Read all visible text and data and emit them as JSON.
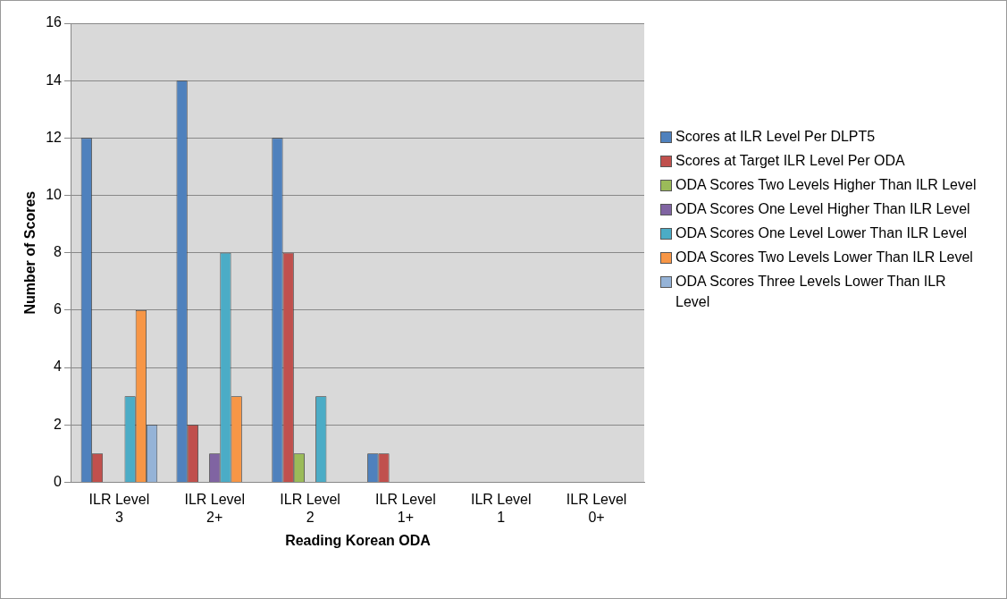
{
  "chart_data": {
    "type": "bar",
    "xlabel": "Reading Korean ODA",
    "ylabel": "Number of Scores",
    "categories": [
      "ILR Level 3",
      "ILR Level 2+",
      "ILR Level 2",
      "ILR Level 1+",
      "ILR Level 1",
      "ILR Level 0+"
    ],
    "series": [
      {
        "name": "Scores at ILR Level Per DLPT5",
        "color": "#4f81bd",
        "values": [
          12,
          14,
          12,
          1,
          0,
          0
        ]
      },
      {
        "name": "Scores at Target ILR Level Per ODA",
        "color": "#c0504d",
        "values": [
          1,
          2,
          8,
          1,
          0,
          0
        ]
      },
      {
        "name": "ODA Scores Two Levels Higher Than ILR Level",
        "color": "#9bbb59",
        "values": [
          0,
          0,
          1,
          0,
          0,
          0
        ]
      },
      {
        "name": "ODA Scores One Level Higher Than ILR Level",
        "color": "#8064a2",
        "values": [
          0,
          1,
          0,
          0,
          0,
          0
        ]
      },
      {
        "name": "ODA Scores One Level Lower Than ILR Level",
        "color": "#4bacc6",
        "values": [
          3,
          8,
          3,
          0,
          0,
          0
        ]
      },
      {
        "name": "ODA Scores Two Levels Lower Than ILR Level",
        "color": "#f79646",
        "values": [
          6,
          3,
          0,
          0,
          0,
          0
        ]
      },
      {
        "name": "ODA Scores Three Levels Lower Than ILR Level",
        "color": "#95b3d7",
        "values": [
          2,
          0,
          0,
          0,
          0,
          0
        ]
      }
    ],
    "ylim": [
      0,
      16
    ],
    "yticks": [
      0,
      2,
      4,
      6,
      8,
      10,
      12,
      14,
      16
    ],
    "grid": "y",
    "legend": "right"
  }
}
